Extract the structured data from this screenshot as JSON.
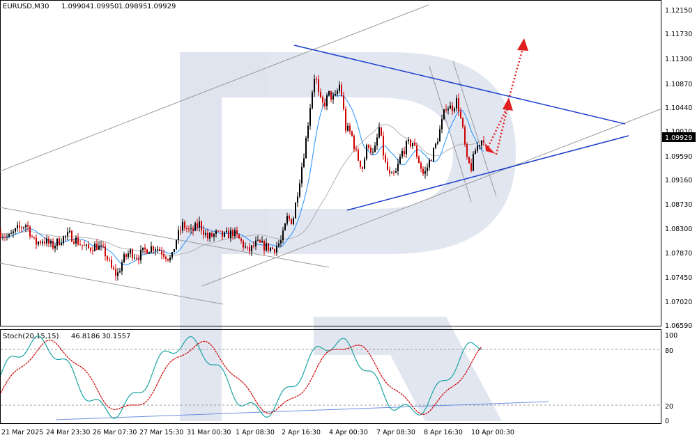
{
  "chart_data": [
    {
      "type": "candlestick",
      "title": "EURUSD,M30",
      "header": {
        "symbol": "EURUSD,M30",
        "open": "1.09904",
        "high": "1.09950",
        "low": "1.09895",
        "close": "1.09929"
      },
      "current_price_label": "1.09929",
      "current_price": 1.09929,
      "ylim": [
        1.0659,
        1.1235
      ],
      "y_ticks": [
        "1.12150",
        "1.11730",
        "1.11300",
        "1.10870",
        "1.10440",
        "1.10010",
        "1.09590",
        "1.09160",
        "1.08730",
        "1.08300",
        "1.07870",
        "1.07450",
        "1.07020",
        "1.06590"
      ],
      "x_ticks": [
        "21 Mar 2025",
        "24 Mar 23:30",
        "26 Mar 07:30",
        "27 Mar 15:30",
        "31 Mar 00:30",
        "1 Apr 08:30",
        "2 Apr 16:30",
        "4 Apr 00:30",
        "7 Apr 08:30",
        "8 Apr 16:30",
        "10 Apr 00:30"
      ],
      "colors": {
        "bull": "#000000",
        "bear": "#cc0000",
        "ma_fast": "#1e90ff",
        "ma_slow": "#b0b0b0",
        "trendline": "#1a3ccc",
        "channel": "#8c8c8c",
        "forecast": "#e02020"
      },
      "price_path": [
        [
          0,
          1.0825
        ],
        [
          12,
          1.0815
        ],
        [
          25,
          1.083
        ],
        [
          38,
          1.084
        ],
        [
          50,
          1.0805
        ],
        [
          62,
          1.0812
        ],
        [
          75,
          1.08
        ],
        [
          90,
          1.0815
        ],
        [
          100,
          1.082
        ],
        [
          112,
          1.0808
        ],
        [
          125,
          1.0795
        ],
        [
          138,
          1.0802
        ],
        [
          150,
          1.079
        ],
        [
          160,
          1.076
        ],
        [
          168,
          1.0748
        ],
        [
          176,
          1.0775
        ],
        [
          186,
          1.079
        ],
        [
          198,
          1.0782
        ],
        [
          210,
          1.0795
        ],
        [
          222,
          1.08
        ],
        [
          235,
          1.0788
        ],
        [
          246,
          1.0775
        ],
        [
          252,
          1.081
        ],
        [
          262,
          1.0838
        ],
        [
          274,
          1.0825
        ],
        [
          286,
          1.084
        ],
        [
          298,
          1.0815
        ],
        [
          310,
          1.0822
        ],
        [
          322,
          1.0818
        ],
        [
          334,
          1.0825
        ],
        [
          346,
          1.0808
        ],
        [
          356,
          1.079
        ],
        [
          368,
          1.0805
        ],
        [
          380,
          1.08
        ],
        [
          392,
          1.0795
        ],
        [
          404,
          1.081
        ],
        [
          412,
          1.085
        ],
        [
          420,
          1.0845
        ],
        [
          430,
          1.092
        ],
        [
          438,
          1.098
        ],
        [
          446,
          1.106
        ],
        [
          452,
          1.111
        ],
        [
          458,
          1.106
        ],
        [
          464,
          1.105
        ],
        [
          472,
          1.107
        ],
        [
          480,
          1.106
        ],
        [
          488,
          1.109
        ],
        [
          496,
          1.101
        ],
        [
          504,
          1.1
        ],
        [
          512,
          1.096
        ],
        [
          520,
          1.094
        ],
        [
          528,
          1.0985
        ],
        [
          536,
          1.096
        ],
        [
          544,
          1.101
        ],
        [
          552,
          1.095
        ],
        [
          560,
          1.092
        ],
        [
          568,
          1.093
        ],
        [
          576,
          1.0965
        ],
        [
          584,
          1.098
        ],
        [
          592,
          1.0985
        ],
        [
          600,
          1.0955
        ],
        [
          608,
          1.0925
        ],
        [
          616,
          1.095
        ],
        [
          624,
          1.0975
        ],
        [
          632,
          1.101
        ],
        [
          640,
          1.105
        ],
        [
          648,
          1.1045
        ],
        [
          656,
          1.106
        ],
        [
          664,
          1.1005
        ],
        [
          670,
          1.095
        ],
        [
          676,
          1.094
        ],
        [
          682,
          1.097
        ],
        [
          688,
          1.0985
        ],
        [
          694,
          1.0993
        ]
      ],
      "indicator": {
        "name": "Stoch(20,15,15)",
        "value1": "46.8186",
        "value2": "30.1557",
        "ylim": [
          0,
          100
        ],
        "y_ticks": [
          "100",
          "80",
          "20",
          "0"
        ],
        "levels": [
          80,
          20
        ]
      }
    }
  ]
}
